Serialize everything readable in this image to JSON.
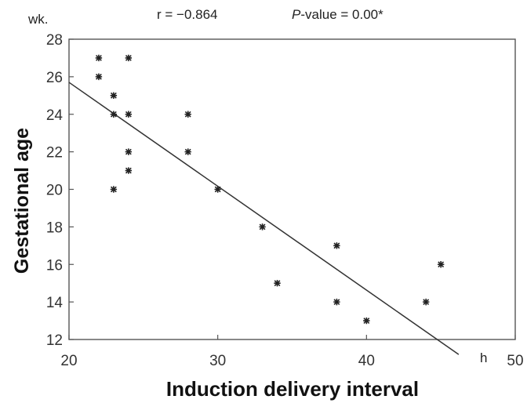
{
  "chart_data": {
    "type": "scatter",
    "title": "",
    "xlabel": "Induction delivery interval",
    "ylabel": "Gestational age",
    "y_unit": "wk.",
    "xlim": [
      20,
      50
    ],
    "ylim": [
      12,
      28
    ],
    "x_ticks": [
      "20",
      "30",
      "40",
      "50"
    ],
    "y_ticks": [
      "12",
      "14",
      "16",
      "18",
      "20",
      "22",
      "24",
      "26",
      "28"
    ],
    "grid": false,
    "legend": "none",
    "annotations": {
      "r_text": "r = −0.864",
      "p_prefix": "P",
      "p_suffix": "-value = 0.00*",
      "line_end_label": "h"
    },
    "points": [
      {
        "x": 22,
        "y": 27
      },
      {
        "x": 22,
        "y": 26
      },
      {
        "x": 23,
        "y": 25
      },
      {
        "x": 23,
        "y": 24
      },
      {
        "x": 23,
        "y": 20
      },
      {
        "x": 24,
        "y": 27
      },
      {
        "x": 24,
        "y": 24
      },
      {
        "x": 24,
        "y": 22
      },
      {
        "x": 24,
        "y": 21
      },
      {
        "x": 28,
        "y": 24
      },
      {
        "x": 28,
        "y": 22
      },
      {
        "x": 30,
        "y": 20
      },
      {
        "x": 33,
        "y": 18
      },
      {
        "x": 34,
        "y": 15
      },
      {
        "x": 38,
        "y": 17
      },
      {
        "x": 38,
        "y": 14
      },
      {
        "x": 40,
        "y": 13
      },
      {
        "x": 44,
        "y": 14
      },
      {
        "x": 45,
        "y": 16
      }
    ],
    "regression_line": {
      "x1": 20,
      "y1": 25.7,
      "x2": 46.2,
      "y2": 11.2
    },
    "colors": {
      "points": "#222222",
      "line": "#333333",
      "axis": "#555555"
    }
  }
}
